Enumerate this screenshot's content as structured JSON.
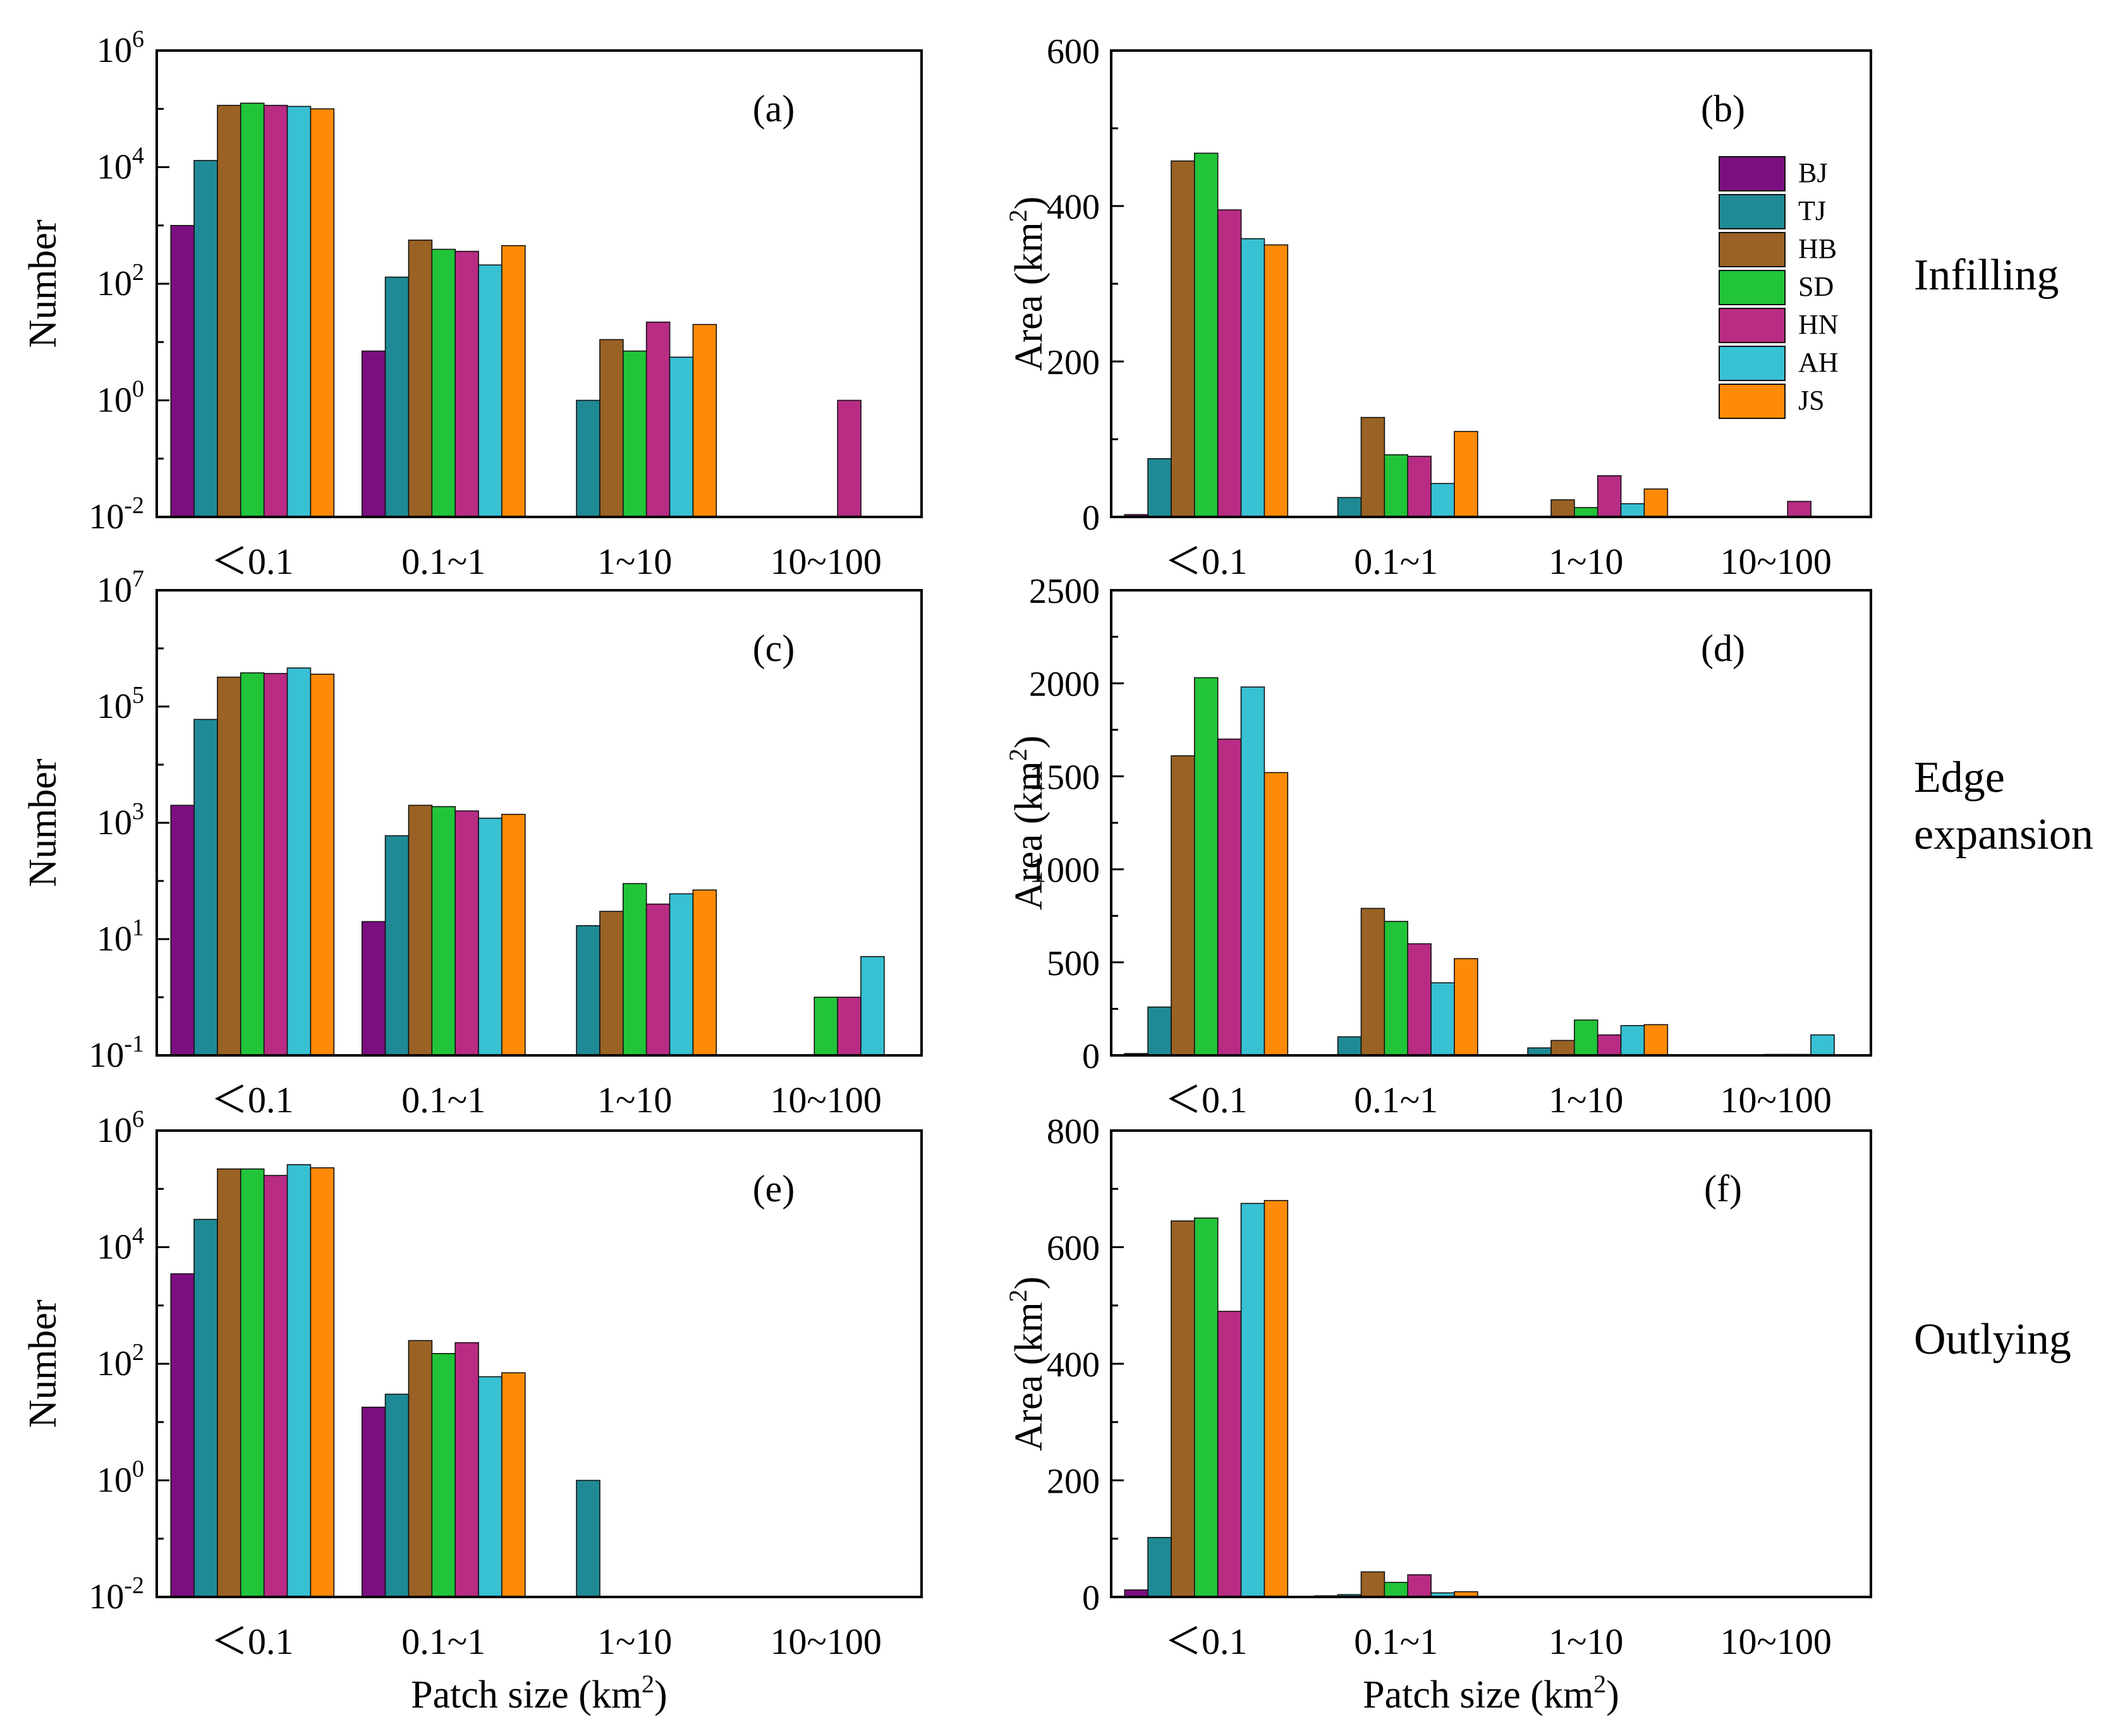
{
  "colors": {
    "BJ": "#7b0f80",
    "TJ": "#1f8a95",
    "HB": "#9a6224",
    "SD": "#22c43a",
    "HN": "#b82c84",
    "AH": "#38c0d3",
    "JS": "#ff8a07"
  },
  "legend": [
    "BJ",
    "TJ",
    "HB",
    "SD",
    "HN",
    "AH",
    "JS"
  ],
  "row_labels": [
    {
      "lines": [
        "Infilling"
      ]
    },
    {
      "lines": [
        "Edge",
        "expansion"
      ]
    },
    {
      "lines": [
        "Outlying"
      ]
    }
  ],
  "chart_data": [
    {
      "panel": "(a)",
      "type": "bar",
      "scale": "log",
      "ylabel": "Number",
      "xlabel": "",
      "ylim": [
        0.01,
        1000000
      ],
      "ticks": [
        {
          "v": 0.01,
          "b": "10",
          "e": "-2"
        },
        {
          "v": 1,
          "b": "10",
          "e": "0"
        },
        {
          "v": 100,
          "b": "10",
          "e": "2"
        },
        {
          "v": 10000,
          "b": "10",
          "e": "4"
        },
        {
          "v": 1000000,
          "b": "10",
          "e": "6"
        }
      ],
      "categories": [
        "<0.1",
        "0.1~1",
        "1~10",
        "10~100"
      ],
      "series": [
        {
          "name": "BJ",
          "values": [
            1000,
            7,
            null,
            null
          ]
        },
        {
          "name": "TJ",
          "values": [
            13000,
            130,
            1,
            null
          ]
        },
        {
          "name": "HB",
          "values": [
            115000,
            560,
            11,
            null
          ]
        },
        {
          "name": "SD",
          "values": [
            125000,
            390,
            7,
            null
          ]
        },
        {
          "name": "HN",
          "values": [
            115000,
            360,
            22,
            1
          ]
        },
        {
          "name": "AH",
          "values": [
            110000,
            210,
            5.5,
            null
          ]
        },
        {
          "name": "JS",
          "values": [
            100000,
            450,
            20,
            null
          ]
        }
      ]
    },
    {
      "panel": "(b)",
      "type": "bar",
      "scale": "linear",
      "ylabel": "Area (km²)",
      "xlabel": "",
      "ylim": [
        0,
        600
      ],
      "ticks": [
        {
          "v": 0,
          "t": "0"
        },
        {
          "v": 200,
          "t": "200"
        },
        {
          "v": 400,
          "t": "400"
        },
        {
          "v": 600,
          "t": "600"
        }
      ],
      "categories": [
        "<0.1",
        "0.1~1",
        "1~10",
        "10~100"
      ],
      "series": [
        {
          "name": "BJ",
          "values": [
            3,
            null,
            null,
            null
          ]
        },
        {
          "name": "TJ",
          "values": [
            75,
            25,
            null,
            null
          ]
        },
        {
          "name": "HB",
          "values": [
            458,
            128,
            22,
            null
          ]
        },
        {
          "name": "SD",
          "values": [
            468,
            80,
            12,
            null
          ]
        },
        {
          "name": "HN",
          "values": [
            395,
            78,
            53,
            20
          ]
        },
        {
          "name": "AH",
          "values": [
            358,
            43,
            17,
            null
          ]
        },
        {
          "name": "JS",
          "values": [
            350,
            110,
            36,
            null
          ]
        }
      ]
    },
    {
      "panel": "(c)",
      "type": "bar",
      "scale": "log",
      "ylabel": "Number",
      "xlabel": "",
      "ylim": [
        0.1,
        10000000
      ],
      "ticks": [
        {
          "v": 0.1,
          "b": "10",
          "e": "-1"
        },
        {
          "v": 10,
          "b": "10",
          "e": "1"
        },
        {
          "v": 1000,
          "b": "10",
          "e": "3"
        },
        {
          "v": 100000,
          "b": "10",
          "e": "5"
        },
        {
          "v": 10000000,
          "b": "10",
          "e": "7"
        }
      ],
      "categories": [
        "<0.1",
        "0.1~1",
        "1~10",
        "10~100"
      ],
      "series": [
        {
          "name": "BJ",
          "values": [
            2000,
            20,
            null,
            null
          ]
        },
        {
          "name": "TJ",
          "values": [
            60000,
            600,
            17,
            null
          ]
        },
        {
          "name": "HB",
          "values": [
            320000,
            2000,
            30,
            null
          ]
        },
        {
          "name": "SD",
          "values": [
            380000,
            1900,
            90,
            1
          ]
        },
        {
          "name": "HN",
          "values": [
            370000,
            1600,
            40,
            1
          ]
        },
        {
          "name": "AH",
          "values": [
            460000,
            1200,
            60,
            5
          ]
        },
        {
          "name": "JS",
          "values": [
            360000,
            1400,
            70,
            null
          ]
        }
      ]
    },
    {
      "panel": "(d)",
      "type": "bar",
      "scale": "linear",
      "ylabel": "Area (km²)",
      "xlabel": "",
      "ylim": [
        0,
        2500
      ],
      "ticks": [
        {
          "v": 0,
          "t": "0"
        },
        {
          "v": 500,
          "t": "500"
        },
        {
          "v": 1000,
          "t": "1000"
        },
        {
          "v": 1500,
          "t": "1500"
        },
        {
          "v": 2000,
          "t": "2000"
        },
        {
          "v": 2500,
          "t": "2500"
        }
      ],
      "categories": [
        "<0.1",
        "0.1~1",
        "1~10",
        "10~100"
      ],
      "series": [
        {
          "name": "BJ",
          "values": [
            10,
            null,
            null,
            null
          ]
        },
        {
          "name": "TJ",
          "values": [
            260,
            100,
            40,
            null
          ]
        },
        {
          "name": "HB",
          "values": [
            1610,
            790,
            80,
            null
          ]
        },
        {
          "name": "SD",
          "values": [
            2030,
            720,
            190,
            5
          ]
        },
        {
          "name": "HN",
          "values": [
            1700,
            600,
            110,
            5
          ]
        },
        {
          "name": "AH",
          "values": [
            1980,
            390,
            160,
            110
          ]
        },
        {
          "name": "JS",
          "values": [
            1520,
            520,
            165,
            null
          ]
        }
      ]
    },
    {
      "panel": "(e)",
      "type": "bar",
      "scale": "log",
      "ylabel": "Number",
      "xlabel": "Patch size (km²)",
      "ylim": [
        0.01,
        1000000
      ],
      "ticks": [
        {
          "v": 0.01,
          "b": "10",
          "e": "-2"
        },
        {
          "v": 1,
          "b": "10",
          "e": "0"
        },
        {
          "v": 100,
          "b": "10",
          "e": "2"
        },
        {
          "v": 10000,
          "b": "10",
          "e": "4"
        },
        {
          "v": 1000000,
          "b": "10",
          "e": "6"
        }
      ],
      "categories": [
        "<0.1",
        "0.1~1",
        "1~10",
        "10~100"
      ],
      "series": [
        {
          "name": "BJ",
          "values": [
            3500,
            18,
            null,
            null
          ]
        },
        {
          "name": "TJ",
          "values": [
            30000,
            30,
            1,
            null
          ]
        },
        {
          "name": "HB",
          "values": [
            220000,
            250,
            null,
            null
          ]
        },
        {
          "name": "SD",
          "values": [
            220000,
            150,
            null,
            null
          ]
        },
        {
          "name": "HN",
          "values": [
            170000,
            230,
            null,
            null
          ]
        },
        {
          "name": "AH",
          "values": [
            260000,
            60,
            null,
            null
          ]
        },
        {
          "name": "JS",
          "values": [
            230000,
            70,
            null,
            null
          ]
        }
      ]
    },
    {
      "panel": "(f)",
      "type": "bar",
      "scale": "linear",
      "ylabel": "Area (km²)",
      "xlabel": "Patch size (km²)",
      "ylim": [
        0,
        800
      ],
      "ticks": [
        {
          "v": 0,
          "t": "0"
        },
        {
          "v": 200,
          "t": "200"
        },
        {
          "v": 400,
          "t": "400"
        },
        {
          "v": 600,
          "t": "600"
        },
        {
          "v": 800,
          "t": "800"
        }
      ],
      "categories": [
        "<0.1",
        "0.1~1",
        "1~10",
        "10~100"
      ],
      "series": [
        {
          "name": "BJ",
          "values": [
            12,
            2,
            null,
            null
          ]
        },
        {
          "name": "TJ",
          "values": [
            102,
            4,
            null,
            null
          ]
        },
        {
          "name": "HB",
          "values": [
            645,
            43,
            null,
            null
          ]
        },
        {
          "name": "SD",
          "values": [
            650,
            25,
            null,
            null
          ]
        },
        {
          "name": "HN",
          "values": [
            490,
            38,
            null,
            null
          ]
        },
        {
          "name": "AH",
          "values": [
            675,
            7,
            null,
            null
          ]
        },
        {
          "name": "JS",
          "values": [
            680,
            9,
            null,
            null
          ]
        }
      ]
    }
  ]
}
